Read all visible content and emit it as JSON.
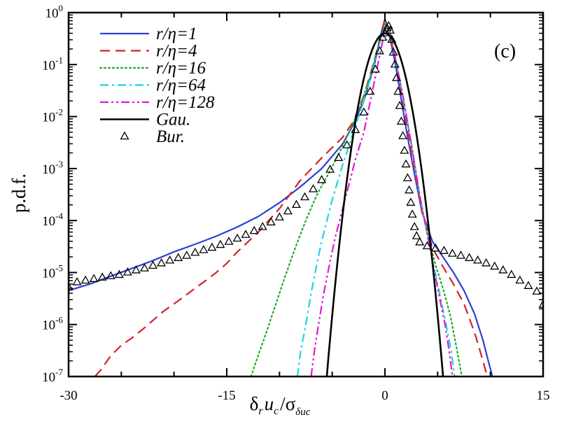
{
  "chart_data": {
    "type": "line",
    "panel_label": "(c)",
    "xlabel": "δ_r u_c/σ_δuc",
    "xlabel_parts": {
      "delta": "δ",
      "r_sub": "r",
      "u": "u",
      "c_sub": "c",
      "slash": "/",
      "sigma": "σ",
      "sigma_sub": "δuc"
    },
    "ylabel": "p.d.f.",
    "xlim": [
      -30,
      15
    ],
    "ylim": [
      1e-07,
      1
    ],
    "yscale": "log",
    "xticks": [
      {
        "value": -30,
        "label": "-30"
      },
      {
        "value": -15,
        "label": "-15"
      },
      {
        "value": 0,
        "label": "0"
      },
      {
        "value": 15,
        "label": "15"
      }
    ],
    "yticks": [
      {
        "exp": 0,
        "base": "10",
        "sup": "0"
      },
      {
        "exp": -1,
        "base": "10",
        "sup": "-1"
      },
      {
        "exp": -2,
        "base": "10",
        "sup": "-2"
      },
      {
        "exp": -3,
        "base": "10",
        "sup": "-3"
      },
      {
        "exp": -4,
        "base": "10",
        "sup": "-4"
      },
      {
        "exp": -5,
        "base": "10",
        "sup": "-5"
      },
      {
        "exp": -6,
        "base": "10",
        "sup": "-6"
      },
      {
        "exp": -7,
        "base": "10",
        "sup": "-7"
      }
    ],
    "legend_position": "top-left",
    "series": [
      {
        "name": "r/η=1",
        "color": "#2c3fd6",
        "style": "solid",
        "points": [
          [
            -30,
            4.5e-06
          ],
          [
            -28,
            6e-06
          ],
          [
            -26,
            8.5e-06
          ],
          [
            -24,
            1.2e-05
          ],
          [
            -22,
            1.7e-05
          ],
          [
            -20,
            2.5e-05
          ],
          [
            -18,
            3.5e-05
          ],
          [
            -16,
            5e-05
          ],
          [
            -14,
            7.5e-05
          ],
          [
            -12,
            0.00012
          ],
          [
            -10,
            0.00022
          ],
          [
            -8,
            0.00045
          ],
          [
            -6,
            0.001
          ],
          [
            -4,
            0.003
          ],
          [
            -3,
            0.007
          ],
          [
            -2,
            0.02
          ],
          [
            -1,
            0.1
          ],
          [
            -0.3,
            0.45
          ],
          [
            0,
            0.75
          ],
          [
            0.3,
            0.5
          ],
          [
            1,
            0.1
          ],
          [
            2,
            0.006
          ],
          [
            2.7,
            0.001
          ],
          [
            3.5,
            0.00015
          ],
          [
            4.5,
            4e-05
          ],
          [
            5.5,
            2e-05
          ],
          [
            6.5,
            1e-05
          ],
          [
            7.5,
            4.5e-06
          ],
          [
            8.5,
            1.6e-06
          ],
          [
            9.3,
            5e-07
          ],
          [
            9.8,
            2e-07
          ],
          [
            10.2,
            1e-07
          ]
        ]
      },
      {
        "name": "r/η=4",
        "color": "#d2232a",
        "style": "dashed",
        "points": [
          [
            -27.5,
            1e-07
          ],
          [
            -27,
            1.3e-07
          ],
          [
            -26,
            2.5e-07
          ],
          [
            -25,
            4e-07
          ],
          [
            -24,
            5.5e-07
          ],
          [
            -23,
            8e-07
          ],
          [
            -22,
            1.2e-06
          ],
          [
            -21,
            1.8e-06
          ],
          [
            -20,
            2.5e-06
          ],
          [
            -19,
            3.5e-06
          ],
          [
            -18,
            5e-06
          ],
          [
            -17,
            7e-06
          ],
          [
            -16,
            1e-05
          ],
          [
            -15,
            1.5e-05
          ],
          [
            -14,
            2.5e-05
          ],
          [
            -12,
            6e-05
          ],
          [
            -10,
            0.00017
          ],
          [
            -8,
            0.0006
          ],
          [
            -6,
            0.0016
          ],
          [
            -4,
            0.004
          ],
          [
            -3,
            0.008
          ],
          [
            -2,
            0.025
          ],
          [
            -1,
            0.12
          ],
          [
            -0.3,
            0.45
          ],
          [
            0,
            0.72
          ],
          [
            0.3,
            0.5
          ],
          [
            1,
            0.12
          ],
          [
            2,
            0.008
          ],
          [
            2.7,
            0.0012
          ],
          [
            3.5,
            0.00015
          ],
          [
            4.5,
            3e-05
          ],
          [
            5.5,
            1.3e-05
          ],
          [
            6.5,
            6e-06
          ],
          [
            7.5,
            2.5e-06
          ],
          [
            8.5,
            7e-07
          ],
          [
            9.3,
            2e-07
          ],
          [
            9.7,
            1e-07
          ]
        ]
      },
      {
        "name": "r/η=16",
        "color": "#1faa1f",
        "style": "dotted",
        "points": [
          [
            -12.7,
            1e-07
          ],
          [
            -12.2,
            2e-07
          ],
          [
            -11.5,
            5e-07
          ],
          [
            -10.5,
            2e-06
          ],
          [
            -9.5,
            8e-06
          ],
          [
            -8.5,
            3e-05
          ],
          [
            -7.5,
            0.0001
          ],
          [
            -6.5,
            0.0003
          ],
          [
            -5.5,
            0.0007
          ],
          [
            -4.5,
            0.0017
          ],
          [
            -3.5,
            0.0045
          ],
          [
            -2.5,
            0.013
          ],
          [
            -1.5,
            0.05
          ],
          [
            -0.7,
            0.2
          ],
          [
            0,
            0.6
          ],
          [
            0.5,
            0.4
          ],
          [
            1,
            0.13
          ],
          [
            1.7,
            0.025
          ],
          [
            2.5,
            0.003
          ],
          [
            3.3,
            0.0003
          ],
          [
            4,
            6e-05
          ],
          [
            4.8,
            1.4e-05
          ],
          [
            5.5,
            5e-06
          ],
          [
            6.2,
            1.5e-06
          ],
          [
            6.8,
            3.5e-07
          ],
          [
            7.3,
            1e-07
          ]
        ]
      },
      {
        "name": "r/η=64",
        "color": "#18d6e0",
        "style": "dashdot",
        "points": [
          [
            -8.3,
            1e-07
          ],
          [
            -8,
            3e-07
          ],
          [
            -7.5,
            1e-06
          ],
          [
            -7,
            4e-06
          ],
          [
            -6.5,
            1.3e-05
          ],
          [
            -6,
            4e-05
          ],
          [
            -5.5,
            0.0001
          ],
          [
            -5,
            0.00025
          ],
          [
            -4.5,
            0.00055
          ],
          [
            -4,
            0.0012
          ],
          [
            -3,
            0.005
          ],
          [
            -2,
            0.02
          ],
          [
            -1,
            0.1
          ],
          [
            -0.3,
            0.35
          ],
          [
            0,
            0.55
          ],
          [
            0.5,
            0.4
          ],
          [
            1,
            0.13
          ],
          [
            1.7,
            0.025
          ],
          [
            2.5,
            0.003
          ],
          [
            3.3,
            0.0003
          ],
          [
            4.2,
            3.5e-05
          ],
          [
            5,
            6e-06
          ],
          [
            5.8,
            1e-06
          ],
          [
            6.3,
            3e-07
          ],
          [
            6.6,
            1e-07
          ]
        ]
      },
      {
        "name": "r/η=128",
        "color": "#e019d6",
        "style": "dashdotdot",
        "points": [
          [
            -7,
            1e-07
          ],
          [
            -6.7,
            3e-07
          ],
          [
            -6.3,
            1e-06
          ],
          [
            -5.8,
            4e-06
          ],
          [
            -5.3,
            1.3e-05
          ],
          [
            -4.8,
            4e-05
          ],
          [
            -4.3,
            0.0001
          ],
          [
            -3.8,
            0.00025
          ],
          [
            -3.3,
            0.0006
          ],
          [
            -2.8,
            0.0015
          ],
          [
            -2,
            0.005
          ],
          [
            -1.2,
            0.03
          ],
          [
            -0.5,
            0.15
          ],
          [
            0,
            0.45
          ],
          [
            0.5,
            0.38
          ],
          [
            1,
            0.13
          ],
          [
            1.7,
            0.025
          ],
          [
            2.5,
            0.003
          ],
          [
            3.3,
            0.0003
          ],
          [
            4.2,
            3.5e-05
          ],
          [
            5,
            5e-06
          ],
          [
            5.7,
            1e-06
          ],
          [
            6.1,
            3e-07
          ],
          [
            6.4,
            1e-07
          ]
        ]
      },
      {
        "name": "Gau.",
        "color": "#000000",
        "style": "solid-thick",
        "gaussian": {
          "sigma": 1,
          "amplitude": 0.3989,
          "xmin": -5.6,
          "xmax": 5.6
        }
      }
    ],
    "markers": {
      "name": "Bur.",
      "color": "#000000",
      "marker": "triangle-open",
      "points": [
        [
          -30,
          5.2e-06
        ],
        [
          -29.2,
          6.5e-06
        ],
        [
          -28.4,
          7e-06
        ],
        [
          -27.6,
          7.5e-06
        ],
        [
          -26.8,
          8e-06
        ],
        [
          -26,
          8.5e-06
        ],
        [
          -25.2,
          9e-06
        ],
        [
          -24.4,
          1e-05
        ],
        [
          -23.6,
          1.1e-05
        ],
        [
          -22.8,
          1.2e-05
        ],
        [
          -22,
          1.35e-05
        ],
        [
          -21.2,
          1.5e-05
        ],
        [
          -20.4,
          1.7e-05
        ],
        [
          -19.6,
          1.9e-05
        ],
        [
          -18.8,
          2.1e-05
        ],
        [
          -18,
          2.4e-05
        ],
        [
          -17.2,
          2.7e-05
        ],
        [
          -16.4,
          3e-05
        ],
        [
          -15.6,
          3.4e-05
        ],
        [
          -14.8,
          3.9e-05
        ],
        [
          -14,
          4.5e-05
        ],
        [
          -13.2,
          5.3e-05
        ],
        [
          -12.4,
          6.3e-05
        ],
        [
          -11.6,
          7.5e-05
        ],
        [
          -10.8,
          9.2e-05
        ],
        [
          -10,
          0.000115
        ],
        [
          -9.2,
          0.00015
        ],
        [
          -8.4,
          0.0002
        ],
        [
          -7.6,
          0.00028
        ],
        [
          -6.8,
          0.0004
        ],
        [
          -6,
          0.0006
        ],
        [
          -5.2,
          0.00095
        ],
        [
          -4.4,
          0.0016
        ],
        [
          -3.6,
          0.0028
        ],
        [
          -2.8,
          0.0055
        ],
        [
          -2.0,
          0.012
        ],
        [
          -1.4,
          0.03
        ],
        [
          -0.9,
          0.08
        ],
        [
          -0.5,
          0.18
        ],
        [
          -0.2,
          0.33
        ],
        [
          0,
          0.4
        ],
        [
          0.2,
          0.5
        ],
        [
          0.35,
          0.55
        ],
        [
          0.5,
          0.45
        ],
        [
          0.65,
          0.3
        ],
        [
          0.8,
          0.17
        ],
        [
          0.95,
          0.1
        ],
        [
          1.1,
          0.055
        ],
        [
          1.25,
          0.03
        ],
        [
          1.4,
          0.016
        ],
        [
          1.55,
          0.008
        ],
        [
          1.7,
          0.0042
        ],
        [
          1.85,
          0.0022
        ],
        [
          2.0,
          0.0012
        ],
        [
          2.15,
          0.00065
        ],
        [
          2.3,
          0.00038
        ],
        [
          2.45,
          0.00022
        ],
        [
          2.6,
          0.00013
        ],
        [
          2.8,
          7.5e-05
        ],
        [
          3.0,
          5e-05
        ],
        [
          3.3,
          3.8e-05
        ],
        [
          4,
          3.2e-05
        ],
        [
          4.8,
          2.9e-05
        ],
        [
          5.6,
          2.6e-05
        ],
        [
          6.4,
          2.3e-05
        ],
        [
          7.2,
          2.1e-05
        ],
        [
          8,
          1.9e-05
        ],
        [
          8.8,
          1.7e-05
        ],
        [
          9.6,
          1.5e-05
        ],
        [
          10.4,
          1.3e-05
        ],
        [
          11.2,
          1.1e-05
        ],
        [
          12,
          9e-06
        ],
        [
          12.8,
          7e-06
        ],
        [
          13.6,
          5.5e-06
        ],
        [
          14.4,
          4.3e-06
        ],
        [
          15,
          2.4e-06
        ]
      ]
    }
  }
}
